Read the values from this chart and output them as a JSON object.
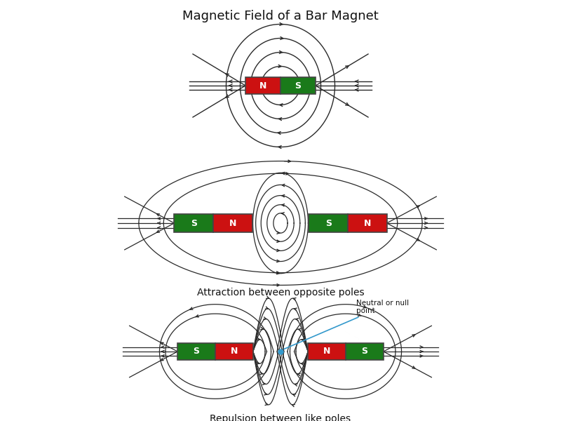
{
  "title": "Magnetic Field of a Bar Magnet",
  "bg_color": "#ffffff",
  "line_color": "#2a2a2a",
  "north_color": "#cc1111",
  "south_color": "#1a7a1a",
  "label1": "Attraction between opposite poles",
  "label2": "Repulsion between like poles",
  "neutral_label": "Neutral or null\npoint",
  "font_size_title": 13,
  "font_size_label": 10
}
